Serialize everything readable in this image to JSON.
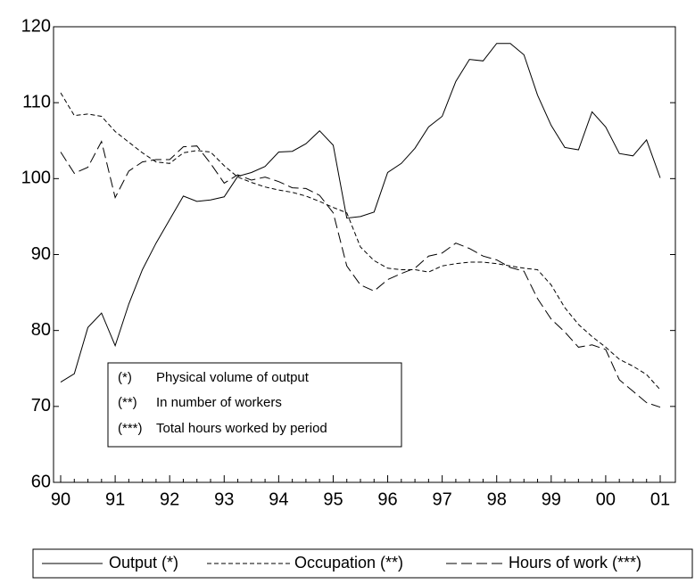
{
  "chart_data": {
    "type": "line",
    "categories": [
      "90",
      null,
      null,
      null,
      "91",
      null,
      null,
      null,
      "92",
      null,
      null,
      null,
      "93",
      null,
      null,
      null,
      "94",
      null,
      null,
      null,
      "95",
      null,
      null,
      null,
      "96",
      null,
      null,
      null,
      "97",
      null,
      null,
      null,
      "98",
      null,
      null,
      null,
      "99",
      null,
      null,
      null,
      "00",
      null,
      null,
      null,
      "01"
    ],
    "ylim": [
      60,
      120
    ],
    "yticks": [
      60,
      70,
      80,
      90,
      100,
      110,
      120
    ],
    "series": [
      {
        "name": "Output (*)",
        "color": "#000000",
        "dash": "solid",
        "values": [
          73.2,
          74.3,
          80.4,
          82.3,
          78,
          83.5,
          88,
          91.5,
          94.6,
          97.7,
          97,
          97.2,
          97.6,
          100.3,
          100.8,
          101.6,
          103.5,
          103.6,
          104.6,
          106.3,
          104.4,
          94.8,
          95,
          95.6,
          100.8,
          102,
          104,
          106.8,
          108.2,
          112.8,
          115.7,
          115.5,
          117.8,
          117.8,
          116.3,
          111,
          107,
          104.1,
          103.8,
          108.8,
          106.8,
          103.3,
          103,
          105.1,
          100.1
        ]
      },
      {
        "name": "Occupation (**)",
        "color": "#000000",
        "dash": "short",
        "values": [
          111.3,
          108.3,
          108.5,
          108.2,
          106.2,
          104.8,
          103.4,
          102.2,
          102,
          103.4,
          103.7,
          103.5,
          101.7,
          100.2,
          99.5,
          98.9,
          98.5,
          98.2,
          97.7,
          97,
          96.2,
          95.5,
          91,
          89.2,
          88.2,
          88,
          88,
          87.7,
          88.5,
          88.8,
          89,
          89,
          88.8,
          88.5,
          88.2,
          88,
          86,
          83,
          80.8,
          79.2,
          77.8,
          76.2,
          75.3,
          74.2,
          72.2
        ]
      },
      {
        "name": "Hours of work (***)",
        "color": "#000000",
        "dash": "long",
        "values": [
          103.5,
          100.7,
          101.5,
          104.9,
          97.5,
          101,
          102.2,
          102.5,
          102.5,
          104.2,
          104.3,
          102,
          99.4,
          100.5,
          99.8,
          100.2,
          99.6,
          98.8,
          98.7,
          97.8,
          95.5,
          88.5,
          86,
          85.2,
          86.7,
          87.5,
          88.2,
          89.8,
          90.2,
          91.5,
          90.8,
          89.8,
          89.3,
          88.3,
          87.8,
          84.2,
          81.5,
          79.8,
          77.8,
          78.1,
          77.5,
          73.5,
          72,
          70.5,
          69.9
        ]
      }
    ],
    "annotations": [
      {
        "marker": "(*)",
        "text": "Physical volume of output"
      },
      {
        "marker": "(**)",
        "text": "In number of workers"
      },
      {
        "marker": "(***)",
        "text": "Total hours worked by period"
      }
    ]
  }
}
